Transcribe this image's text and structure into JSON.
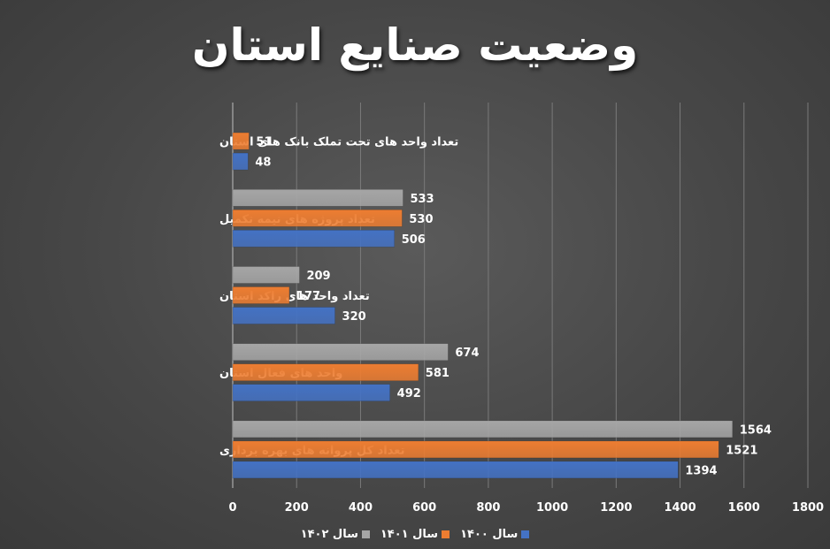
{
  "chart_data": {
    "type": "bar",
    "orientation": "horizontal",
    "title": "وضعیت صنایع استان",
    "categories": [
      "تعداد واحد های تحت تملک بانک های استان",
      "تعداد پروژه های نیمه تکمیل",
      "تعداد واحد های راکد استان",
      "واحد های فعال استان",
      "تعداد کل پروانه های بهره برداری"
    ],
    "series": [
      {
        "name": "سال ۱۴۰۲",
        "color": "#a6a6a6",
        "values": [
          null,
          533,
          209,
          674,
          1564
        ]
      },
      {
        "name": "سال ۱۴۰۱",
        "color": "#ed7d31",
        "values": [
          51,
          530,
          177,
          581,
          1521
        ]
      },
      {
        "name": "سال ۱۴۰۰",
        "color": "#4472c4",
        "values": [
          48,
          506,
          320,
          492,
          1394
        ]
      }
    ],
    "xlim": [
      0,
      1800
    ],
    "x_ticks": [
      "0",
      "200",
      "400",
      "600",
      "800",
      "1000",
      "1200",
      "1400",
      "1600",
      "1800"
    ],
    "grid": true,
    "legend_position": "bottom"
  }
}
